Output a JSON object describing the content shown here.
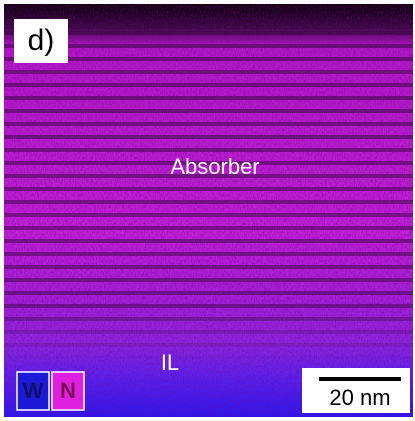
{
  "panel_label": "d)",
  "labels": {
    "absorber": "Absorber",
    "interlayer": "IL"
  },
  "legend": [
    "W",
    "N"
  ],
  "scale_bar": "20 nm"
}
